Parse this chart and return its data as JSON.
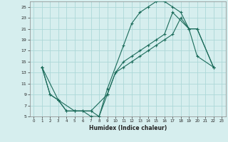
{
  "xlabel": "Humidex (Indice chaleur)",
  "background_color": "#d6eeee",
  "grid_color": "#add8d8",
  "line_color": "#1a6b5a",
  "marker_color": "#1a6b5a",
  "xlim": [
    -0.5,
    23.5
  ],
  "ylim": [
    5,
    26
  ],
  "xticks": [
    0,
    1,
    2,
    3,
    4,
    5,
    6,
    7,
    8,
    9,
    10,
    11,
    12,
    13,
    14,
    15,
    16,
    17,
    18,
    19,
    20,
    21,
    22,
    23
  ],
  "yticks": [
    5,
    7,
    9,
    11,
    13,
    15,
    17,
    19,
    21,
    23,
    25
  ],
  "line1_x": [
    1,
    2,
    3,
    4,
    5,
    6,
    7,
    8,
    9,
    11,
    12,
    13,
    14,
    15,
    16,
    17,
    18,
    19,
    20,
    22
  ],
  "line1_y": [
    14,
    9,
    8,
    6,
    6,
    6,
    5,
    5,
    10,
    18,
    22,
    24,
    25,
    26,
    26,
    25,
    24,
    21,
    16,
    14
  ],
  "line2_x": [
    1,
    2,
    3,
    4,
    5,
    6,
    7,
    8,
    9,
    10,
    11,
    12,
    13,
    14,
    15,
    16,
    17,
    19,
    20,
    22
  ],
  "line2_y": [
    14,
    9,
    8,
    6,
    6,
    6,
    6,
    5,
    9,
    13,
    15,
    16,
    17,
    18,
    19,
    20,
    24,
    21,
    21,
    14
  ],
  "line3_x": [
    1,
    3,
    5,
    7,
    9,
    10,
    11,
    12,
    13,
    14,
    15,
    16,
    17,
    18,
    19,
    20,
    22
  ],
  "line3_y": [
    14,
    8,
    6,
    6,
    9,
    13,
    14,
    15,
    16,
    17,
    18,
    19,
    20,
    23,
    21,
    21,
    14
  ]
}
